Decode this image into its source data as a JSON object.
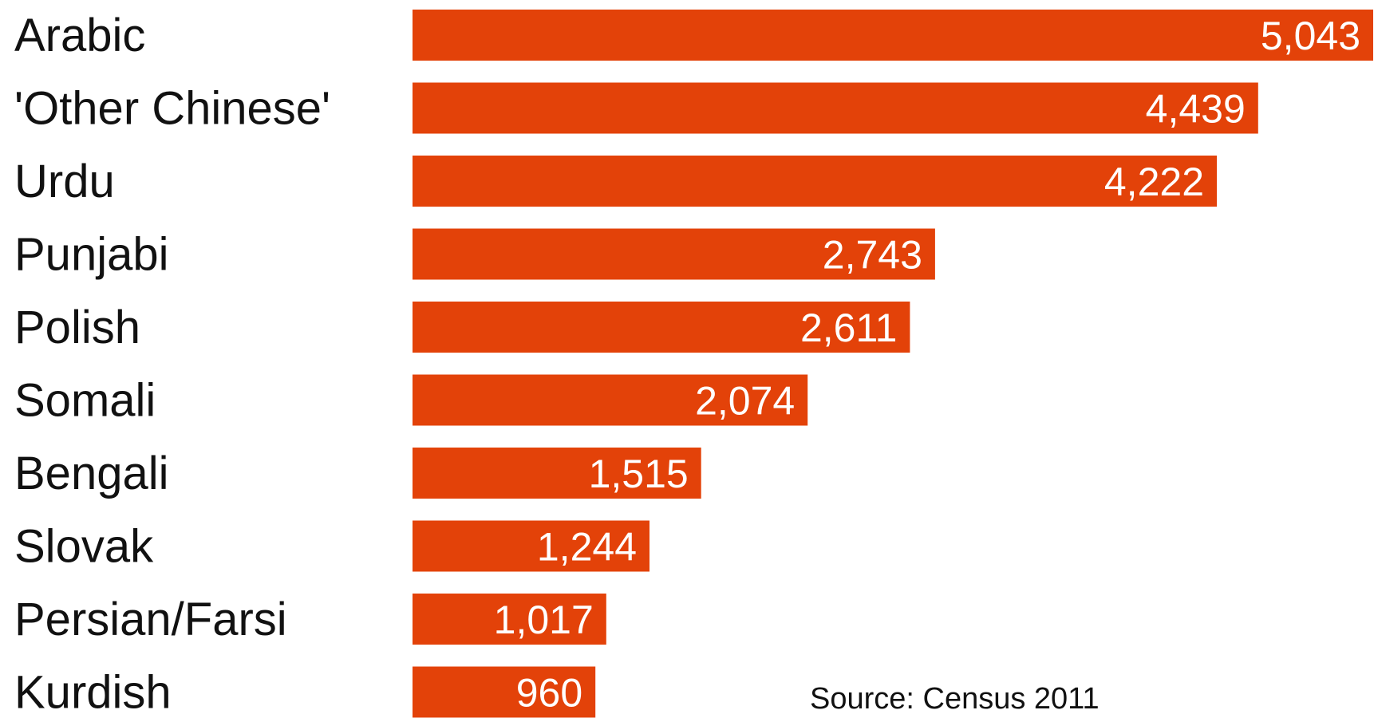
{
  "chart_data": {
    "type": "bar",
    "orientation": "horizontal",
    "categories": [
      "Arabic",
      "'Other Chinese'",
      "Urdu",
      "Punjabi",
      "Polish",
      "Somali",
      "Bengali",
      "Slovak",
      "Persian/Farsi",
      "Kurdish"
    ],
    "values": [
      5043,
      4439,
      4222,
      2743,
      2611,
      2074,
      1515,
      1244,
      1017,
      960
    ],
    "value_labels": [
      "5,043",
      "4,439",
      "4,222",
      "2,743",
      "2,611",
      "2,074",
      "1,515",
      "1,244",
      "1,017",
      "960"
    ],
    "title": "",
    "xlabel": "",
    "ylabel": "",
    "xlim": [
      0,
      5043
    ],
    "grid": false,
    "legend": "none",
    "bar_color": "#e34209",
    "label_color": "#ffffff",
    "text_color": "#111111",
    "annotation": "Source: Census 2011"
  }
}
